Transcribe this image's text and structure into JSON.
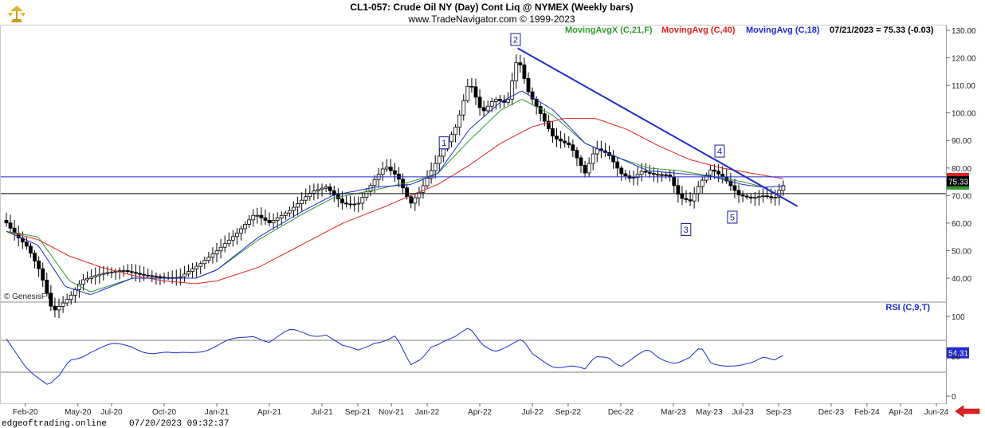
{
  "header": {
    "title": "CL1-057:  Crude Oil NY (Day) Cont Liq @ NYMEX  (Weekly bars)",
    "subtitle": "www.TradeNavigator.com © 1999-2023"
  },
  "legend": [
    {
      "text": "MovingAvgX (C,21,F)",
      "color": "#2e9a2e"
    },
    {
      "text": "MovingAvg (C,40)",
      "color": "#e02020"
    },
    {
      "text": "MovingAvg (C,18)",
      "color": "#1f2ad0"
    },
    {
      "text": "07/21/2023 = 75.33 (-0.03)",
      "color": "#000000"
    }
  ],
  "brand": {
    "copyright": "© GenesisFT",
    "logo": "trade-navigator-logo"
  },
  "footer": {
    "site": "edgeoftrading.online",
    "timestamp": "07/20/2023 09:32:37"
  },
  "colors": {
    "candle": "#000000",
    "ma21": "#2e9a2e",
    "ma40": "#e02020",
    "ma18": "#1f2ad0",
    "trend": "#1f2ad0",
    "hline": "#1f2ad0",
    "rsi": "#1f2ad0",
    "arrow": "#e02020"
  },
  "chart_data": [
    {
      "type": "candlestick",
      "title": "CL1-057:  Crude Oil NY (Day) Cont Liq @ NYMEX  (Weekly bars)",
      "ylim": [
        30,
        132
      ],
      "yticks": [
        "130.00",
        "120.00",
        "110.00",
        "100.00",
        "90.00",
        "80.00",
        "70.00",
        "60.00",
        "50.00",
        "40.00"
      ],
      "last_price_label": "75.33",
      "horizontal_lines": [
        76.8,
        70.7
      ],
      "trendline": {
        "start": {
          "week": 2022.43,
          "value": 123.5
        },
        "end": {
          "week": 2023.76,
          "value": 66.1
        }
      },
      "wave_labels": [
        {
          "label": "1",
          "week": 2022.08,
          "value": 89.0
        },
        {
          "label": "2",
          "week": 2022.42,
          "value": 126.5
        },
        {
          "label": "3",
          "week": 2023.23,
          "value": 57.5
        },
        {
          "label": "4",
          "week": 2023.39,
          "value": 86.0
        },
        {
          "label": "5",
          "week": 2023.45,
          "value": 62.0
        }
      ],
      "series_anchors": {
        "close": [
          [
            2020.0,
            61
          ],
          [
            2020.05,
            56
          ],
          [
            2020.1,
            52
          ],
          [
            2020.16,
            43
          ],
          [
            2020.22,
            28
          ],
          [
            2020.3,
            33
          ],
          [
            2020.36,
            39
          ],
          [
            2020.45,
            41
          ],
          [
            2020.55,
            42
          ],
          [
            2020.65,
            40
          ],
          [
            2020.75,
            39
          ],
          [
            2020.82,
            39
          ],
          [
            2020.92,
            44
          ],
          [
            2021.0,
            49
          ],
          [
            2021.1,
            56
          ],
          [
            2021.18,
            63
          ],
          [
            2021.25,
            60
          ],
          [
            2021.35,
            65
          ],
          [
            2021.45,
            72
          ],
          [
            2021.52,
            74
          ],
          [
            2021.6,
            68
          ],
          [
            2021.67,
            68
          ],
          [
            2021.75,
            77
          ],
          [
            2021.8,
            82
          ],
          [
            2021.86,
            78
          ],
          [
            2021.92,
            68
          ],
          [
            2021.97,
            73
          ],
          [
            2022.02,
            80
          ],
          [
            2022.08,
            88
          ],
          [
            2022.14,
            96
          ],
          [
            2022.2,
            112
          ],
          [
            2022.26,
            100
          ],
          [
            2022.32,
            105
          ],
          [
            2022.38,
            103
          ],
          [
            2022.43,
            120
          ],
          [
            2022.48,
            107
          ],
          [
            2022.53,
            100
          ],
          [
            2022.6,
            90
          ],
          [
            2022.68,
            87
          ],
          [
            2022.75,
            77
          ],
          [
            2022.8,
            86
          ],
          [
            2022.86,
            84
          ],
          [
            2022.92,
            77
          ],
          [
            2022.97,
            75
          ],
          [
            2023.02,
            78
          ],
          [
            2023.08,
            77
          ],
          [
            2023.15,
            77
          ],
          [
            2023.2,
            69
          ],
          [
            2023.25,
            68
          ],
          [
            2023.3,
            75
          ],
          [
            2023.35,
            80
          ],
          [
            2023.41,
            77
          ],
          [
            2023.48,
            71
          ],
          [
            2023.54,
            70
          ],
          [
            2023.6,
            71
          ],
          [
            2023.65,
            70
          ],
          [
            2023.68,
            74
          ],
          [
            2023.7,
            75.33
          ]
        ],
        "ma21": [
          [
            2020.0,
            57
          ],
          [
            2020.15,
            55
          ],
          [
            2020.3,
            39
          ],
          [
            2020.4,
            35
          ],
          [
            2020.6,
            40
          ],
          [
            2020.75,
            40
          ],
          [
            2020.9,
            40
          ],
          [
            2021.0,
            43
          ],
          [
            2021.2,
            54
          ],
          [
            2021.4,
            63
          ],
          [
            2021.55,
            69
          ],
          [
            2021.75,
            72
          ],
          [
            2021.92,
            75
          ],
          [
            2022.05,
            78
          ],
          [
            2022.2,
            90
          ],
          [
            2022.35,
            101
          ],
          [
            2022.45,
            105
          ],
          [
            2022.6,
            99
          ],
          [
            2022.75,
            89
          ],
          [
            2022.9,
            84
          ],
          [
            2023.05,
            80
          ],
          [
            2023.2,
            79
          ],
          [
            2023.35,
            77
          ],
          [
            2023.5,
            75
          ],
          [
            2023.6,
            73
          ],
          [
            2023.7,
            73.5
          ]
        ],
        "ma40": [
          [
            2020.0,
            57
          ],
          [
            2020.15,
            54
          ],
          [
            2020.3,
            48
          ],
          [
            2020.45,
            44
          ],
          [
            2020.6,
            41
          ],
          [
            2020.75,
            39
          ],
          [
            2020.9,
            38
          ],
          [
            2021.0,
            39
          ],
          [
            2021.2,
            44
          ],
          [
            2021.4,
            52
          ],
          [
            2021.6,
            60
          ],
          [
            2021.8,
            66
          ],
          [
            2021.92,
            70
          ],
          [
            2022.05,
            74
          ],
          [
            2022.2,
            81
          ],
          [
            2022.35,
            89
          ],
          [
            2022.5,
            95
          ],
          [
            2022.65,
            98
          ],
          [
            2022.8,
            98
          ],
          [
            2022.95,
            94
          ],
          [
            2023.1,
            88
          ],
          [
            2023.25,
            83
          ],
          [
            2023.4,
            80
          ],
          [
            2023.55,
            78
          ],
          [
            2023.7,
            76
          ]
        ],
        "ma18": [
          [
            2020.0,
            57
          ],
          [
            2020.15,
            52
          ],
          [
            2020.28,
            37
          ],
          [
            2020.4,
            34
          ],
          [
            2020.6,
            40
          ],
          [
            2020.75,
            40
          ],
          [
            2020.9,
            40
          ],
          [
            2021.0,
            43
          ],
          [
            2021.2,
            55
          ],
          [
            2021.4,
            64
          ],
          [
            2021.55,
            70
          ],
          [
            2021.75,
            73
          ],
          [
            2021.92,
            74
          ],
          [
            2022.05,
            78
          ],
          [
            2022.2,
            94
          ],
          [
            2022.35,
            104
          ],
          [
            2022.45,
            108
          ],
          [
            2022.6,
            101
          ],
          [
            2022.75,
            89
          ],
          [
            2022.9,
            84
          ],
          [
            2023.05,
            79
          ],
          [
            2023.2,
            78
          ],
          [
            2023.35,
            77
          ],
          [
            2023.5,
            74
          ],
          [
            2023.6,
            73
          ],
          [
            2023.7,
            73.5
          ]
        ]
      }
    },
    {
      "type": "line",
      "title": "RSI (C,9,T)",
      "ylim": [
        -5,
        115
      ],
      "yticks": [
        "100",
        "50",
        "0"
      ],
      "horizontal_lines": [
        70,
        30
      ],
      "last_value_label": "54.31",
      "series_anchors": {
        "rsi": [
          [
            2020.0,
            70
          ],
          [
            2020.05,
            55
          ],
          [
            2020.1,
            38
          ],
          [
            2020.15,
            24
          ],
          [
            2020.2,
            10
          ],
          [
            2020.25,
            22
          ],
          [
            2020.3,
            45
          ],
          [
            2020.4,
            58
          ],
          [
            2020.5,
            62
          ],
          [
            2020.6,
            63
          ],
          [
            2020.7,
            55
          ],
          [
            2020.8,
            50
          ],
          [
            2020.9,
            58
          ],
          [
            2021.0,
            63
          ],
          [
            2021.1,
            70
          ],
          [
            2021.18,
            78
          ],
          [
            2021.25,
            70
          ],
          [
            2021.35,
            80
          ],
          [
            2021.45,
            78
          ],
          [
            2021.52,
            80
          ],
          [
            2021.6,
            60
          ],
          [
            2021.67,
            55
          ],
          [
            2021.75,
            70
          ],
          [
            2021.85,
            75
          ],
          [
            2021.92,
            35
          ],
          [
            2021.97,
            45
          ],
          [
            2022.02,
            65
          ],
          [
            2022.08,
            72
          ],
          [
            2022.14,
            74
          ],
          [
            2022.2,
            82
          ],
          [
            2022.26,
            65
          ],
          [
            2022.32,
            60
          ],
          [
            2022.4,
            65
          ],
          [
            2022.45,
            68
          ],
          [
            2022.5,
            50
          ],
          [
            2022.55,
            45
          ],
          [
            2022.6,
            40
          ],
          [
            2022.68,
            38
          ],
          [
            2022.75,
            30
          ],
          [
            2022.8,
            48
          ],
          [
            2022.86,
            52
          ],
          [
            2022.92,
            40
          ],
          [
            2022.97,
            45
          ],
          [
            2023.05,
            55
          ],
          [
            2023.1,
            48
          ],
          [
            2023.18,
            45
          ],
          [
            2023.25,
            48
          ],
          [
            2023.3,
            58
          ],
          [
            2023.35,
            38
          ],
          [
            2023.45,
            42
          ],
          [
            2023.55,
            40
          ],
          [
            2023.6,
            45
          ],
          [
            2023.65,
            44
          ],
          [
            2023.68,
            52
          ],
          [
            2023.7,
            54.31
          ]
        ]
      }
    }
  ],
  "x_axis": {
    "labels": [
      {
        "text": "Feb-20",
        "t": 2020.09
      },
      {
        "text": "May-20",
        "t": 2020.34
      },
      {
        "text": "Jul-20",
        "t": 2020.5
      },
      {
        "text": "Oct-20",
        "t": 2020.75
      },
      {
        "text": "Jan-21",
        "t": 2021.0
      },
      {
        "text": "Apr-21",
        "t": 2021.25
      },
      {
        "text": "Jul-21",
        "t": 2021.5
      },
      {
        "text": "Sep-21",
        "t": 2021.67
      },
      {
        "text": "Nov-21",
        "t": 2021.83
      },
      {
        "text": "Jan-22",
        "t": 2022.0
      },
      {
        "text": "Apr-22",
        "t": 2022.25
      },
      {
        "text": "Jul-22",
        "t": 2022.5
      },
      {
        "text": "Sep-22",
        "t": 2022.67
      },
      {
        "text": "Dec-22",
        "t": 2022.92
      },
      {
        "text": "Mar-23",
        "t": 2023.17
      },
      {
        "text": "May-23",
        "t": 2023.34
      },
      {
        "text": "Jul-23",
        "t": 2023.5
      },
      {
        "text": "Sep-23",
        "t": 2023.67
      },
      {
        "text": "Dec-23",
        "t": 2023.92
      },
      {
        "text": "Feb-24",
        "t": 2024.09
      },
      {
        "text": "Apr-24",
        "t": 2024.25
      },
      {
        "text": "Jun-24",
        "t": 2024.42
      }
    ]
  }
}
